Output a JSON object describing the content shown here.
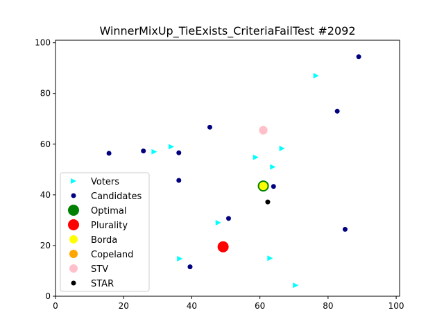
{
  "chart_data": {
    "type": "scatter",
    "title": "WinnerMixUp_TieExists_CriteriaFailTest #2092",
    "xlabel": "",
    "ylabel": "",
    "xlim": [
      0,
      101
    ],
    "ylim": [
      0,
      101
    ],
    "xticks": [
      "0",
      "20",
      "40",
      "60",
      "80",
      "100"
    ],
    "yticks": [
      "0",
      "20",
      "40",
      "60",
      "80",
      "100"
    ],
    "grid": false,
    "legend_position": "lower-left",
    "series": [
      {
        "name": "Voters",
        "marker": "triangle-right",
        "color": "#00ffff",
        "points": [
          [
            76.5,
            87
          ],
          [
            66.5,
            58.3
          ],
          [
            63.8,
            51
          ],
          [
            58.8,
            54.8
          ],
          [
            34,
            59
          ],
          [
            29,
            57
          ],
          [
            47.8,
            29
          ],
          [
            36.5,
            14.8
          ],
          [
            63,
            15
          ],
          [
            70.5,
            4.3
          ]
        ]
      },
      {
        "name": "Candidates",
        "marker": "circle",
        "color": "#000080",
        "points": [
          [
            89,
            94.5
          ],
          [
            82.7,
            73
          ],
          [
            45.3,
            66.7
          ],
          [
            15.7,
            56.4
          ],
          [
            25.8,
            57.3
          ],
          [
            36.2,
            56.6
          ],
          [
            36.2,
            45.7
          ],
          [
            64,
            43.3
          ],
          [
            50.8,
            30.7
          ],
          [
            85,
            26.4
          ],
          [
            39.5,
            11.6
          ]
        ]
      },
      {
        "name": "Optimal",
        "marker": "circle-large",
        "color": "#008000",
        "points": [
          [
            61,
            43.5
          ]
        ]
      },
      {
        "name": "Plurality",
        "marker": "circle-large",
        "color": "#ff0000",
        "points": [
          [
            49.2,
            19.5
          ]
        ]
      },
      {
        "name": "Borda",
        "marker": "circle-medium",
        "color": "#ffff00",
        "points": [
          [
            61,
            43.5
          ]
        ]
      },
      {
        "name": "Copeland",
        "marker": "circle-medium",
        "color": "#ffa500",
        "points": [
          [
            61,
            65.5
          ]
        ]
      },
      {
        "name": "STV",
        "marker": "circle-medium",
        "color": "#ffc0cb",
        "points": [
          [
            61,
            65.5
          ]
        ]
      },
      {
        "name": "STAR",
        "marker": "circle",
        "color": "#000000",
        "points": [
          [
            62.3,
            37.2
          ]
        ]
      }
    ]
  }
}
